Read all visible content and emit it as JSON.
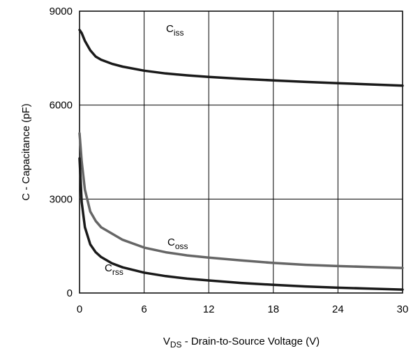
{
  "chart_data": {
    "type": "line",
    "title": "",
    "xlabel": {
      "main": "V",
      "sub": "DS",
      "rest": " - Drain-to-Source Voltage (V)"
    },
    "ylabel": "C - Capacitance (pF)",
    "xlim": [
      0,
      30
    ],
    "ylim": [
      0,
      9000
    ],
    "x_ticks": [
      "0",
      "6",
      "12",
      "18",
      "24",
      "30"
    ],
    "y_ticks": [
      "0",
      "3000",
      "6000",
      "9000"
    ],
    "grid": true,
    "legend": "none",
    "series": [
      {
        "name": "Ciss",
        "label_main": "C",
        "label_sub": "iss",
        "color": "#1a1a1a",
        "x": [
          0,
          0.2,
          0.5,
          1,
          1.5,
          2,
          3,
          4,
          6,
          8,
          10,
          12,
          15,
          18,
          21,
          24,
          27,
          30
        ],
        "y": [
          8400,
          8300,
          8050,
          7750,
          7550,
          7450,
          7320,
          7230,
          7100,
          7010,
          6950,
          6900,
          6840,
          6790,
          6740,
          6700,
          6660,
          6620
        ]
      },
      {
        "name": "Coss",
        "label_main": "C",
        "label_sub": "oss",
        "color": "#666666",
        "x": [
          0,
          0.2,
          0.5,
          1,
          1.5,
          2,
          3,
          4,
          6,
          8,
          10,
          12,
          15,
          18,
          21,
          24,
          27,
          30
        ],
        "y": [
          5100,
          4200,
          3300,
          2600,
          2300,
          2100,
          1900,
          1700,
          1450,
          1300,
          1200,
          1130,
          1040,
          960,
          900,
          860,
          830,
          800
        ]
      },
      {
        "name": "Crss",
        "label_main": "C",
        "label_sub": "rss",
        "color": "#1a1a1a",
        "x": [
          0,
          0.2,
          0.5,
          1,
          1.5,
          2,
          3,
          4,
          6,
          8,
          10,
          12,
          15,
          18,
          21,
          24,
          27,
          30
        ],
        "y": [
          4300,
          2900,
          2100,
          1550,
          1300,
          1150,
          950,
          820,
          650,
          540,
          460,
          400,
          320,
          260,
          210,
          170,
          140,
          110
        ]
      }
    ]
  }
}
